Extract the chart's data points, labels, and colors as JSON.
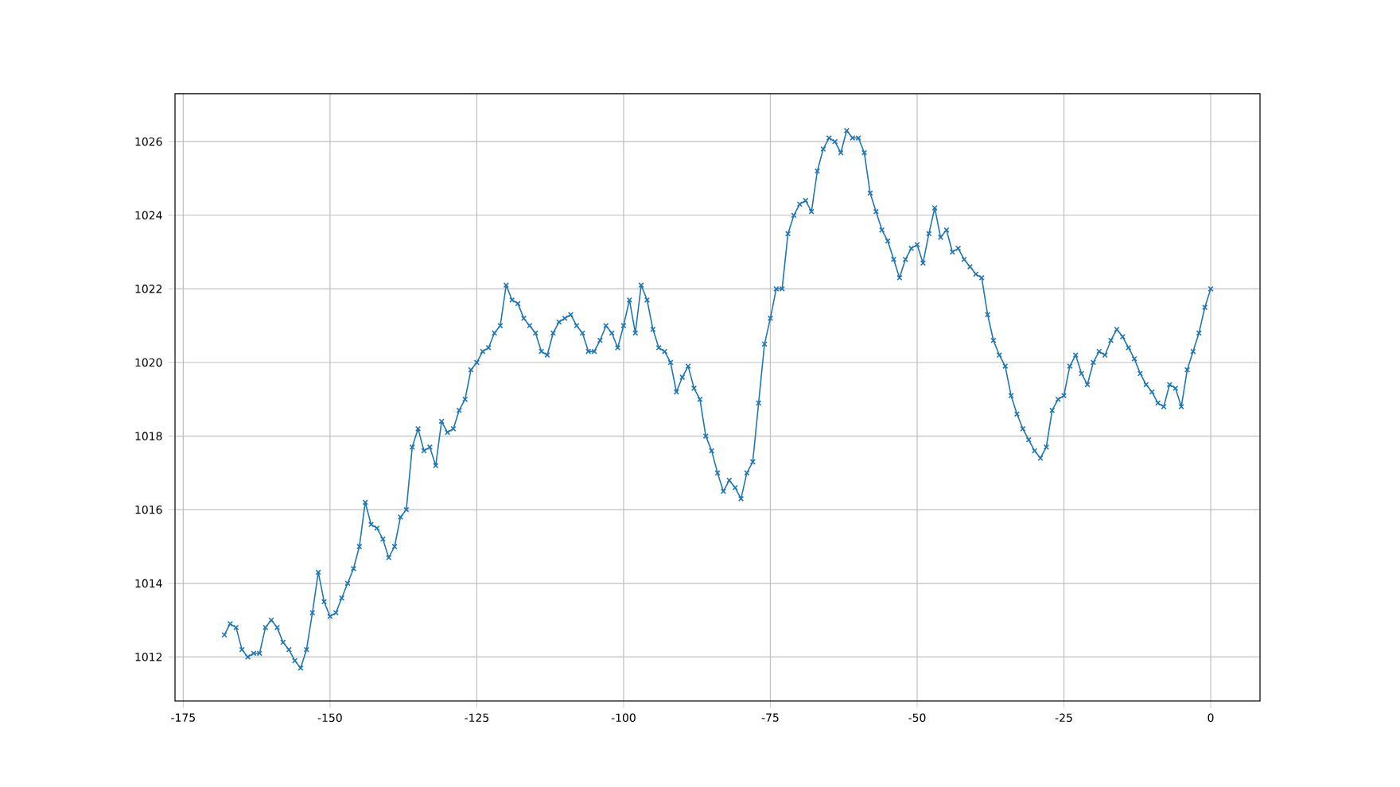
{
  "chart_data": {
    "type": "line",
    "x": [
      -168,
      -167,
      -166,
      -165,
      -164,
      -163,
      -162,
      -161,
      -160,
      -159,
      -158,
      -157,
      -156,
      -155,
      -154,
      -153,
      -152,
      -151,
      -150,
      -149,
      -148,
      -147,
      -146,
      -145,
      -144,
      -143,
      -142,
      -141,
      -140,
      -139,
      -138,
      -137,
      -136,
      -135,
      -134,
      -133,
      -132,
      -131,
      -130,
      -129,
      -128,
      -127,
      -126,
      -125,
      -124,
      -123,
      -122,
      -121,
      -120,
      -119,
      -118,
      -117,
      -116,
      -115,
      -114,
      -113,
      -112,
      -111,
      -110,
      -109,
      -108,
      -107,
      -106,
      -105,
      -104,
      -103,
      -102,
      -101,
      -100,
      -99,
      -98,
      -97,
      -96,
      -95,
      -94,
      -93,
      -92,
      -91,
      -90,
      -89,
      -88,
      -87,
      -86,
      -85,
      -84,
      -83,
      -82,
      -81,
      -80,
      -79,
      -78,
      -77,
      -76,
      -75,
      -74,
      -73,
      -72,
      -71,
      -70,
      -69,
      -68,
      -67,
      -66,
      -65,
      -64,
      -63,
      -62,
      -61,
      -60,
      -59,
      -58,
      -57,
      -56,
      -55,
      -54,
      -53,
      -52,
      -51,
      -50,
      -49,
      -48,
      -47,
      -46,
      -45,
      -44,
      -43,
      -42,
      -41,
      -40,
      -39,
      -38,
      -37,
      -36,
      -35,
      -34,
      -33,
      -32,
      -31,
      -30,
      -29,
      -28,
      -27,
      -26,
      -25,
      -24,
      -23,
      -22,
      -21,
      -20,
      -19,
      -18,
      -17,
      -16,
      -15,
      -14,
      -13,
      -12,
      -11,
      -10,
      -9,
      -8,
      -7,
      -6,
      -5,
      -4,
      -3,
      -2,
      -1,
      0
    ],
    "series": [
      {
        "color": "#1f77b4",
        "values": [
          1012.6,
          1012.9,
          1012.8,
          1012.2,
          1012.0,
          1012.1,
          1012.1,
          1012.8,
          1013.0,
          1012.8,
          1012.4,
          1012.2,
          1011.9,
          1011.7,
          1012.2,
          1013.2,
          1014.3,
          1013.5,
          1013.1,
          1013.2,
          1013.6,
          1014.0,
          1014.4,
          1015.0,
          1016.2,
          1015.6,
          1015.5,
          1015.2,
          1014.7,
          1015.0,
          1015.8,
          1016.0,
          1017.7,
          1018.2,
          1017.6,
          1017.7,
          1017.2,
          1018.4,
          1018.1,
          1018.2,
          1018.7,
          1019.0,
          1019.8,
          1020.0,
          1020.3,
          1020.4,
          1020.8,
          1021.0,
          1022.1,
          1021.7,
          1021.6,
          1021.2,
          1021.0,
          1020.8,
          1020.3,
          1020.2,
          1020.8,
          1021.1,
          1021.2,
          1021.3,
          1021.0,
          1020.8,
          1020.3,
          1020.3,
          1020.6,
          1021.0,
          1020.8,
          1020.4,
          1021.0,
          1021.7,
          1020.8,
          1022.1,
          1021.7,
          1020.9,
          1020.4,
          1020.3,
          1020.0,
          1019.2,
          1019.6,
          1019.9,
          1019.3,
          1019.0,
          1018.0,
          1017.6,
          1017.0,
          1016.5,
          1016.8,
          1016.6,
          1016.3,
          1017.0,
          1017.3,
          1018.9,
          1020.5,
          1021.2,
          1022.0,
          1022.0,
          1023.5,
          1024.0,
          1024.3,
          1024.4,
          1024.1,
          1025.2,
          1025.8,
          1026.1,
          1026.0,
          1025.7,
          1026.3,
          1026.1,
          1026.1,
          1025.7,
          1024.6,
          1024.1,
          1023.6,
          1023.3,
          1022.8,
          1022.3,
          1022.8,
          1023.1,
          1023.2,
          1022.7,
          1023.5,
          1024.2,
          1023.4,
          1023.6,
          1023.0,
          1023.1,
          1022.8,
          1022.6,
          1022.4,
          1022.3,
          1021.3,
          1020.6,
          1020.2,
          1019.9,
          1019.1,
          1018.6,
          1018.2,
          1017.9,
          1017.6,
          1017.4,
          1017.7,
          1018.7,
          1019.0,
          1019.1,
          1019.9,
          1020.2,
          1019.7,
          1019.4,
          1020.0,
          1020.3,
          1020.2,
          1020.6,
          1020.9,
          1020.7,
          1020.4,
          1020.1,
          1019.7,
          1019.4,
          1019.2,
          1018.9,
          1018.8,
          1019.4,
          1019.3,
          1018.8,
          1019.8,
          1020.3,
          1020.8,
          1021.5,
          1022.0
        ]
      }
    ],
    "xlim": [
      -176.4,
      8.4
    ],
    "ylim": [
      1010.8,
      1027.3
    ],
    "xticks": [
      -175,
      -150,
      -125,
      -100,
      -75,
      -50,
      -25,
      0
    ],
    "yticks": [
      1012,
      1014,
      1016,
      1018,
      1020,
      1022,
      1024,
      1026
    ],
    "grid": true,
    "marker": "cross",
    "line_style": "solid"
  }
}
